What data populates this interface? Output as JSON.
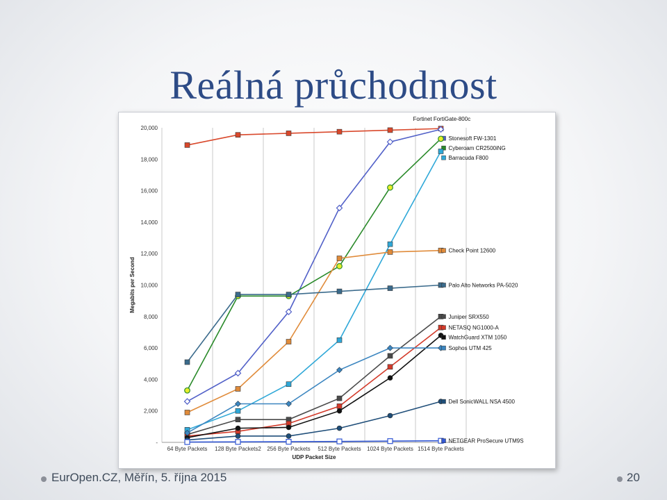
{
  "slide": {
    "title": "Reálná průchodnost",
    "footer_text": "EurOpen.CZ, Měřín, 5. října 2015",
    "page_number": "20"
  },
  "chart_data": {
    "type": "line",
    "xlabel": "UDP Packet Size",
    "ylabel": "Megabits per Second",
    "ylim": [
      0,
      20000
    ],
    "yticks": [
      0,
      2000,
      4000,
      6000,
      8000,
      10000,
      12000,
      14000,
      16000,
      18000,
      20000
    ],
    "ytick_labels": [
      "-",
      "2,000",
      "4,000",
      "6,000",
      "8,000",
      "10,000",
      "12,000",
      "14,000",
      "16,000",
      "18,000",
      "20,000"
    ],
    "categories": [
      "64 Byte Packets",
      "128 Byte Packets2",
      "256 Byte Packets",
      "512 Byte Packets",
      "1024 Byte Packets",
      "1514 Byte Packets"
    ],
    "grid": "vertical lines between categories",
    "legend": "series labels at right end of each line",
    "series": [
      {
        "name": "Fortinet FortiGate-800c",
        "color": "#d9482b",
        "marker": "square",
        "values": [
          18900,
          19550,
          19650,
          19750,
          19850,
          19950
        ]
      },
      {
        "name": "Stonesoft FW-1301",
        "color": "#5160c8",
        "marker": "diamond-open",
        "values": [
          2600,
          4400,
          8300,
          14900,
          19100,
          19900
        ]
      },
      {
        "name": "Cyberoam CR2500iNG",
        "color": "#2a8a2a",
        "marker": "circle-yellow",
        "values": [
          3300,
          9300,
          9300,
          11200,
          16200,
          19300
        ]
      },
      {
        "name": "Barracuda F800",
        "color": "#2fa8d8",
        "marker": "square",
        "values": [
          800,
          2000,
          3700,
          6500,
          12600,
          18500
        ]
      },
      {
        "name": "Check Point 12600",
        "color": "#e08b3a",
        "marker": "square",
        "values": [
          1900,
          3400,
          6400,
          11700,
          12100,
          12200
        ]
      },
      {
        "name": "Palo Alto Networks PA-5020",
        "color": "#3b6b8c",
        "marker": "square",
        "values": [
          5100,
          9400,
          9400,
          9600,
          9800,
          10000
        ]
      },
      {
        "name": "Juniper SRX550",
        "color": "#4a4a4a",
        "marker": "square",
        "values": [
          500,
          1450,
          1450,
          2800,
          5500,
          8000
        ]
      },
      {
        "name": "NETASQ NG1000-A",
        "color": "#d33a2a",
        "marker": "square",
        "values": [
          400,
          700,
          1200,
          2300,
          4800,
          7300
        ]
      },
      {
        "name": "WatchGuard XTM 1050",
        "color": "#111111",
        "marker": "circle",
        "values": [
          300,
          900,
          950,
          2000,
          4100,
          6800
        ]
      },
      {
        "name": "Sophos UTM 425",
        "color": "#3c86c0",
        "marker": "diamond",
        "values": [
          600,
          2450,
          2450,
          4600,
          6000,
          6000
        ]
      },
      {
        "name": "Dell SonicWALL NSA 4500",
        "color": "#1f4e79",
        "marker": "circle",
        "values": [
          150,
          400,
          400,
          900,
          1700,
          2600
        ]
      },
      {
        "name": "NETGEAR ProSecure UTM9S",
        "color": "#3358d4",
        "marker": "square-open",
        "values": [
          20,
          30,
          40,
          60,
          80,
          100
        ]
      }
    ]
  }
}
